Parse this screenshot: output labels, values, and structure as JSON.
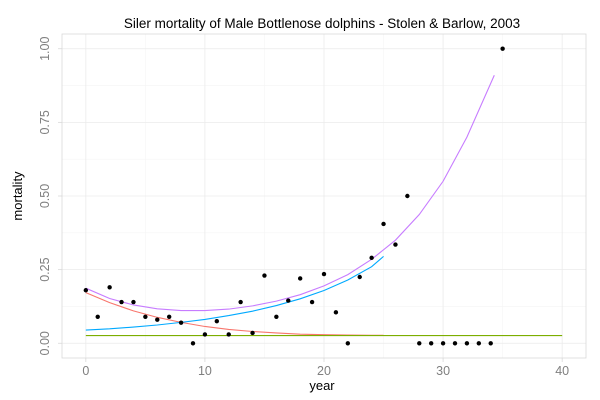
{
  "chart_data": {
    "type": "scatter",
    "title": "Siler mortality of Male Bottlenose dolphins - Stolen & Barlow, 2003",
    "xlabel": "year",
    "ylabel": "mortality",
    "xlim": [
      -2,
      42
    ],
    "ylim": [
      -0.05,
      1.05
    ],
    "x_ticks": [
      0,
      10,
      20,
      30,
      40
    ],
    "x_tick_labels": [
      "0",
      "10",
      "20",
      "30",
      "40"
    ],
    "y_ticks": [
      0,
      0.25,
      0.5,
      0.75,
      1.0
    ],
    "y_tick_labels": [
      "0.00",
      "0.25",
      "0.50",
      "0.75",
      "1.00"
    ],
    "grid": true,
    "points": {
      "x": [
        0,
        1,
        2,
        3,
        4,
        5,
        6,
        7,
        8,
        9,
        10,
        11,
        12,
        13,
        14,
        15,
        16,
        17,
        18,
        19,
        20,
        21,
        22,
        23,
        24,
        25,
        26,
        27,
        28,
        29,
        30,
        31,
        32,
        33,
        34,
        35
      ],
      "y": [
        0.18,
        0.09,
        0.19,
        0.14,
        0.14,
        0.09,
        0.08,
        0.09,
        0.07,
        0.0,
        0.03,
        0.075,
        0.03,
        0.14,
        0.035,
        0.23,
        0.09,
        0.145,
        0.22,
        0.14,
        0.235,
        0.105,
        0.0,
        0.225,
        0.29,
        0.405,
        0.335,
        0.5,
        0.0,
        0.0,
        0.0,
        0.0,
        0.0,
        0.0,
        0.0,
        1.0
      ]
    },
    "series": [
      {
        "color": "#c77cff",
        "x": [
          0,
          2,
          4,
          6,
          8,
          10,
          12,
          14,
          16,
          18,
          20,
          22,
          24,
          26,
          28,
          30,
          32,
          34.3
        ],
        "y": [
          0.187,
          0.152,
          0.13,
          0.117,
          0.111,
          0.111,
          0.116,
          0.127,
          0.143,
          0.165,
          0.195,
          0.233,
          0.285,
          0.35,
          0.437,
          0.55,
          0.7,
          0.91
        ]
      },
      {
        "color": "#f8766d",
        "x": [
          0,
          2,
          4,
          6,
          8,
          10,
          12,
          14,
          16,
          18,
          20,
          22,
          24,
          25
        ],
        "y": [
          0.172,
          0.138,
          0.11,
          0.088,
          0.071,
          0.057,
          0.047,
          0.04,
          0.035,
          0.031,
          0.029,
          0.028,
          0.027,
          0.027
        ]
      },
      {
        "color": "#00a9ff",
        "x": [
          0,
          2,
          4,
          6,
          8,
          10,
          12,
          14,
          16,
          18,
          20,
          22,
          24,
          25
        ],
        "y": [
          0.045,
          0.049,
          0.055,
          0.062,
          0.071,
          0.081,
          0.094,
          0.109,
          0.128,
          0.151,
          0.179,
          0.215,
          0.26,
          0.295
        ]
      },
      {
        "color": "#7cae00",
        "x": [
          0,
          40
        ],
        "y": [
          0.026,
          0.026
        ]
      }
    ]
  }
}
